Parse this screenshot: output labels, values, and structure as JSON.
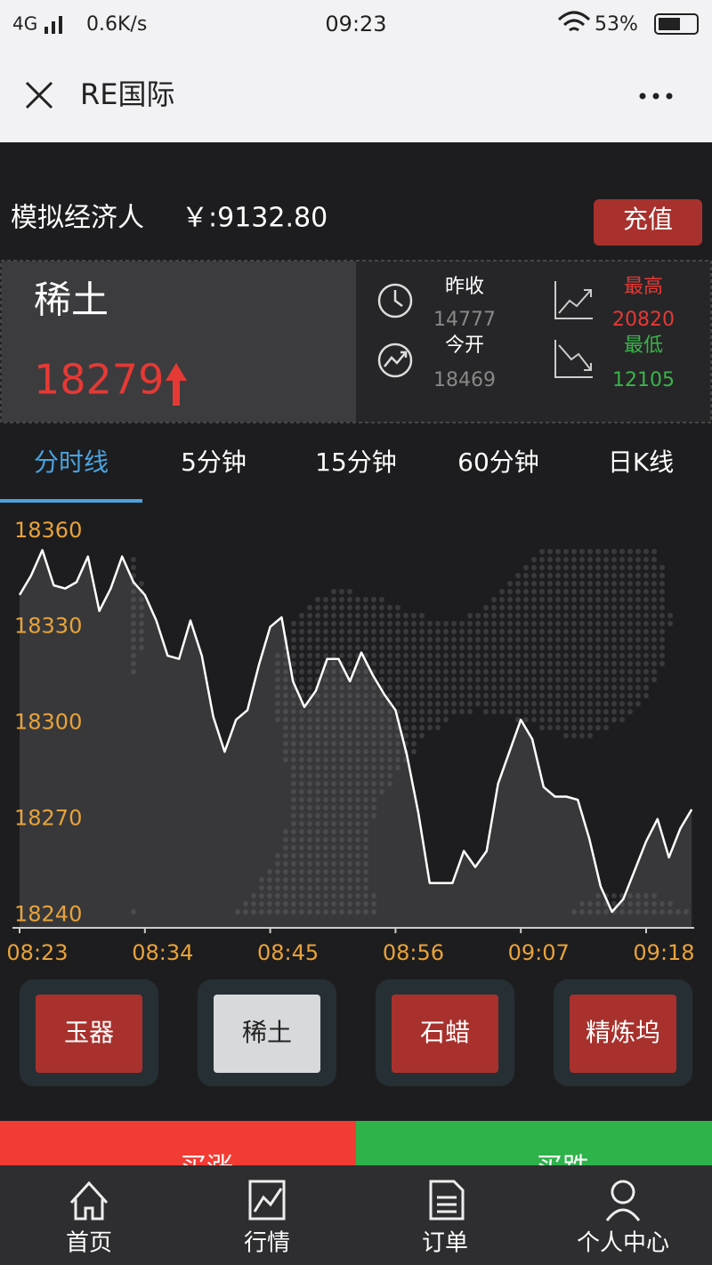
{
  "status_bar": {
    "network": "4G",
    "speed": "0.6K/s",
    "time": "09:23",
    "battery": "53%"
  },
  "nav": {
    "title": "RE国际"
  },
  "account": {
    "label": "模拟经济人",
    "balance": "￥:9132.80",
    "recharge": "充值"
  },
  "quote": {
    "name": "稀土",
    "price": "18279",
    "prev_close_label": "昨收",
    "prev_close": "14777",
    "open_label": "今开",
    "open": "18469",
    "high_label": "最高",
    "high": "20820",
    "low_label": "最低",
    "low": "12105"
  },
  "tabs": [
    "分时线",
    "5分钟",
    "15分钟",
    "60分钟",
    "日K线"
  ],
  "chart_data": {
    "type": "line",
    "color": "#ffffff",
    "tick_color": "#e8a33a",
    "categories": [
      "08:23",
      null,
      null,
      null,
      null,
      null,
      null,
      null,
      null,
      null,
      null,
      "08:34",
      null,
      null,
      null,
      null,
      null,
      null,
      null,
      null,
      null,
      null,
      "08:45",
      null,
      null,
      null,
      null,
      null,
      null,
      null,
      null,
      null,
      null,
      "08:56",
      null,
      null,
      null,
      null,
      null,
      null,
      null,
      null,
      null,
      null,
      "09:07",
      null,
      null,
      null,
      null,
      null,
      null,
      null,
      null,
      null,
      null,
      "09:18",
      null,
      null,
      null,
      null
    ],
    "values": [
      18340,
      18346,
      18354,
      18343,
      18342,
      18344,
      18352,
      18335,
      18342,
      18352,
      18344,
      18340,
      18332,
      18321,
      18320,
      18332,
      18321,
      18302,
      18291,
      18301,
      18304,
      18318,
      18330,
      18333,
      18313,
      18305,
      18310,
      18320,
      18320,
      18313,
      18322,
      18315,
      18309,
      18304,
      18290,
      18272,
      18250,
      18250,
      18250,
      18260,
      18255,
      18260,
      18281,
      18291,
      18301,
      18295,
      18280,
      18277,
      18277,
      18276,
      18264,
      18249,
      18241,
      18245,
      18254,
      18263,
      18270,
      18258,
      18267,
      18273
    ],
    "ylim": [
      18236,
      18368
    ],
    "yticks": [
      18240,
      18270,
      18300,
      18330,
      18360
    ]
  },
  "products": [
    "玉器",
    "稀土",
    "石蜡",
    "精炼坞"
  ],
  "trade": {
    "buy_up": "买涨",
    "buy_down": "买跌"
  },
  "tab_bar": [
    "首页",
    "行情",
    "订单",
    "个人中心"
  ]
}
